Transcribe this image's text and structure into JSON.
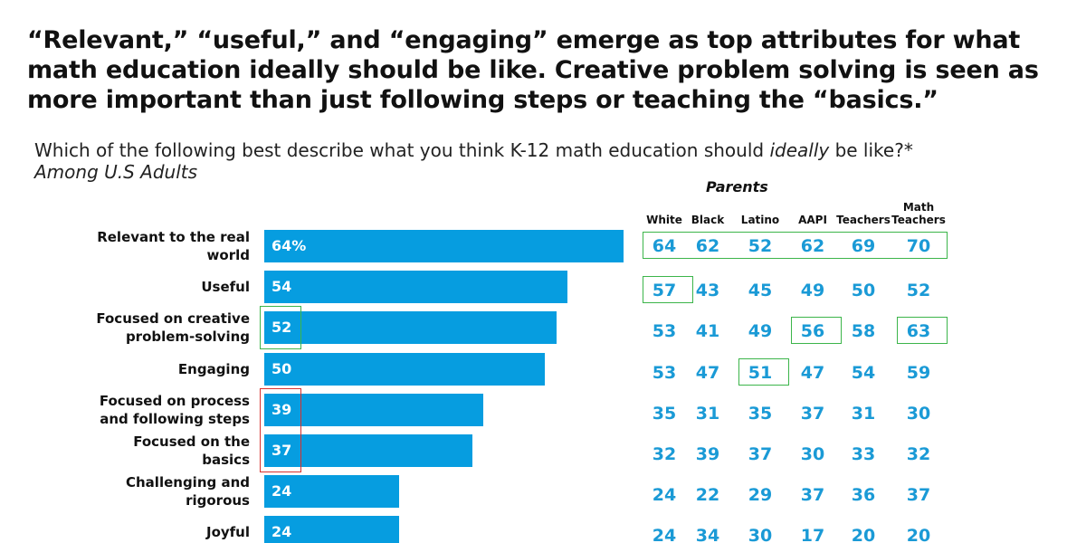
{
  "chart_data": {
    "type": "bar",
    "orientation": "horizontal",
    "title": "“Relevant,” “useful,” and “engaging” emerge as top attributes for what math education ideally should be like. Creative problem solving is seen as more important than just following steps or teaching the “basics.”",
    "subtitle": "Which of the following best describe what you think K-12 math education should ideally be like?*",
    "subtitle_emphasis": "ideally",
    "note": "Among U.S Adults",
    "categories": [
      "Relevant to the real world",
      "Useful",
      "Focused on creative problem-solving",
      "Engaging",
      "Focused on process and following steps",
      "Focused on the basics",
      "Challenging and rigorous",
      "Joyful"
    ],
    "values": [
      64,
      54,
      52,
      50,
      39,
      37,
      24,
      24
    ],
    "value_labels": [
      "64%",
      "54",
      "52",
      "50",
      "39",
      "37",
      "24",
      "24"
    ],
    "color": "#069de0",
    "xlim": [
      0,
      64
    ],
    "bar_highlights": [
      {
        "from": 2,
        "to": 2,
        "color": "#3cb54a"
      },
      {
        "from": 4,
        "to": 5,
        "color": "#d9302c"
      }
    ]
  },
  "table": {
    "group_label": "Parents",
    "columns": [
      "White",
      "Black",
      "Latino",
      "AAPI",
      "Teachers",
      "Math Teachers"
    ],
    "rows": [
      [
        64,
        62,
        52,
        62,
        69,
        70
      ],
      [
        57,
        43,
        45,
        49,
        50,
        52
      ],
      [
        53,
        41,
        49,
        56,
        58,
        63
      ],
      [
        53,
        47,
        51,
        47,
        54,
        59
      ],
      [
        35,
        31,
        35,
        37,
        31,
        30
      ],
      [
        32,
        39,
        37,
        30,
        33,
        32
      ],
      [
        24,
        22,
        29,
        37,
        36,
        37
      ],
      [
        24,
        34,
        30,
        17,
        20,
        20
      ]
    ],
    "color": "#1a9ad6",
    "highlights": [
      {
        "rows": [
          0,
          0
        ],
        "cols": [
          0,
          5
        ],
        "color": "#3cb54a"
      },
      {
        "rows": [
          1,
          1
        ],
        "cols": [
          0,
          0
        ],
        "color": "#3cb54a"
      },
      {
        "rows": [
          2,
          2
        ],
        "cols": [
          3,
          3
        ],
        "color": "#3cb54a"
      },
      {
        "rows": [
          2,
          2
        ],
        "cols": [
          5,
          5
        ],
        "color": "#3cb54a"
      },
      {
        "rows": [
          3,
          3
        ],
        "cols": [
          2,
          2
        ],
        "color": "#3cb54a"
      }
    ]
  }
}
